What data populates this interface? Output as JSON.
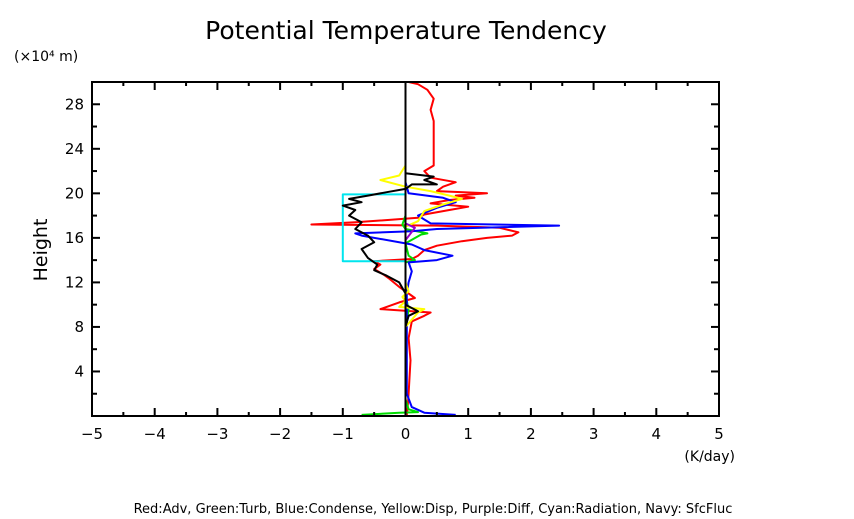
{
  "chart_data": {
    "type": "line",
    "title": "Potential Temperature Tendency",
    "ylabel": "Height",
    "y_unit_label": "(×10⁴ m)",
    "x_unit_label": "(K/day)",
    "legend_text": "Red:Adv, Green:Turb, Blue:Condense, Yellow:Disp, Purple:Diff, Cyan:Radiation, Navy: SfcFluc",
    "xlim": [
      -5,
      5
    ],
    "ylim": [
      0,
      30
    ],
    "x_ticks": [
      -5,
      -4,
      -3,
      -2,
      -1,
      0,
      1,
      2,
      3,
      4,
      5
    ],
    "x_tick_labels": [
      "−5",
      "−4",
      "−3",
      "−2",
      "−1",
      "0",
      "1",
      "2",
      "3",
      "4",
      "5"
    ],
    "y_ticks": [
      4,
      8,
      12,
      16,
      20,
      24,
      28
    ],
    "y_tick_labels": [
      "4",
      "8",
      "12",
      "16",
      "20",
      "24",
      "28"
    ],
    "grid": false,
    "series": [
      {
        "name": "Red:Adv",
        "color": "#ff0000",
        "points": [
          [
            0.02,
            0.1
          ],
          [
            0.03,
            0.5
          ],
          [
            0.05,
            2
          ],
          [
            0.08,
            5
          ],
          [
            0.05,
            7
          ],
          [
            0.1,
            8.5
          ],
          [
            0.3,
            9
          ],
          [
            0.4,
            9.3
          ],
          [
            -0.4,
            9.6
          ],
          [
            -0.1,
            10.2
          ],
          [
            0.15,
            10.6
          ],
          [
            0.05,
            11
          ],
          [
            -0.1,
            11.6
          ],
          [
            -0.25,
            12.3
          ],
          [
            -0.35,
            12.7
          ],
          [
            -0.5,
            13.2
          ],
          [
            -0.4,
            13.6
          ],
          [
            -0.5,
            13.9
          ],
          [
            0.1,
            14.1
          ],
          [
            0.2,
            14.4
          ],
          [
            0.3,
            14.9
          ],
          [
            0.5,
            15.3
          ],
          [
            0.9,
            15.7
          ],
          [
            1.3,
            16
          ],
          [
            1.7,
            16.2
          ],
          [
            1.8,
            16.5
          ],
          [
            1.5,
            16.9
          ],
          [
            0.5,
            17.1
          ],
          [
            -1.5,
            17.2
          ],
          [
            -0.8,
            17.4
          ],
          [
            0.2,
            17.8
          ],
          [
            0.3,
            18.1
          ],
          [
            0.7,
            18.5
          ],
          [
            1.0,
            18.8
          ],
          [
            0.4,
            19.1
          ],
          [
            0.7,
            19.4
          ],
          [
            1.1,
            19.6
          ],
          [
            0.8,
            19.8
          ],
          [
            1.3,
            20
          ],
          [
            0.5,
            20.2
          ],
          [
            0.6,
            20.6
          ],
          [
            0.8,
            21
          ],
          [
            0.4,
            21.4
          ],
          [
            0.3,
            22
          ],
          [
            0.45,
            22.5
          ],
          [
            0.45,
            23.5
          ],
          [
            0.45,
            24.5
          ],
          [
            0.45,
            25.5
          ],
          [
            0.45,
            26.5
          ],
          [
            0.4,
            27.5
          ],
          [
            0.45,
            28.5
          ],
          [
            0.35,
            29.3
          ],
          [
            0.2,
            29.8
          ],
          [
            0.05,
            30
          ]
        ]
      },
      {
        "name": "Green:Turb",
        "color": "#00dd00",
        "points": [
          [
            -0.7,
            0.1
          ],
          [
            -0.1,
            0.3
          ],
          [
            0.2,
            0.35
          ],
          [
            0.05,
            0.6
          ],
          [
            0.0,
            1.5
          ],
          [
            0.0,
            8
          ],
          [
            0.05,
            9.5
          ],
          [
            0.0,
            11
          ],
          [
            0.0,
            13
          ],
          [
            0.0,
            13.8
          ],
          [
            0.15,
            14
          ],
          [
            0.05,
            14.4
          ],
          [
            0.0,
            15.5
          ],
          [
            0.25,
            16.3
          ],
          [
            0.35,
            16.4
          ],
          [
            0.0,
            16.8
          ],
          [
            -0.05,
            17.2
          ],
          [
            0.0,
            18
          ],
          [
            0.0,
            30
          ]
        ]
      },
      {
        "name": "Blue:Condense",
        "color": "#0000ff",
        "points": [
          [
            0.8,
            0.1
          ],
          [
            0.3,
            0.3
          ],
          [
            0.1,
            0.8
          ],
          [
            0.02,
            2
          ],
          [
            0.02,
            9
          ],
          [
            0.02,
            11
          ],
          [
            0.05,
            12
          ],
          [
            0.1,
            13
          ],
          [
            0.05,
            13.8
          ],
          [
            0.5,
            14
          ],
          [
            0.75,
            14.4
          ],
          [
            0.3,
            14.9
          ],
          [
            0.1,
            15.4
          ],
          [
            -0.7,
            16.2
          ],
          [
            -0.8,
            16.4
          ],
          [
            0.1,
            16.6
          ],
          [
            0.5,
            16.8
          ],
          [
            2.45,
            17.1
          ],
          [
            0.4,
            17.3
          ],
          [
            0.2,
            18
          ],
          [
            0.5,
            18.7
          ],
          [
            0.8,
            19.2
          ],
          [
            0.6,
            19.6
          ],
          [
            0.05,
            20
          ],
          [
            0.0,
            21
          ],
          [
            0.0,
            30
          ]
        ]
      },
      {
        "name": "Yellow:Disp",
        "color": "#ffff00",
        "points": [
          [
            0.0,
            0.1
          ],
          [
            0.0,
            8
          ],
          [
            0.2,
            9.3
          ],
          [
            0.3,
            9.6
          ],
          [
            -0.1,
            9.8
          ],
          [
            0.0,
            10.3
          ],
          [
            -0.05,
            10.7
          ],
          [
            0.05,
            11.2
          ],
          [
            0.0,
            12
          ],
          [
            0.0,
            16
          ],
          [
            0.0,
            17
          ],
          [
            0.2,
            17.5
          ],
          [
            0.3,
            18.4
          ],
          [
            0.6,
            19
          ],
          [
            0.9,
            19.5
          ],
          [
            0.7,
            19.8
          ],
          [
            0.4,
            20.2
          ],
          [
            0.0,
            20.6
          ],
          [
            -0.4,
            21.2
          ],
          [
            -0.1,
            21.6
          ],
          [
            0.0,
            22.5
          ],
          [
            0.0,
            30
          ]
        ]
      },
      {
        "name": "Purple:Diff",
        "color": "#9900cc",
        "points": [
          [
            0.0,
            0.1
          ],
          [
            0.0,
            15.8
          ],
          [
            0.15,
            16.9
          ],
          [
            0.0,
            17.3
          ],
          [
            0.0,
            30
          ]
        ]
      },
      {
        "name": "Cyan:Radiation",
        "color": "#00e5ee",
        "points": [
          [
            0.0,
            0.1
          ],
          [
            0.0,
            13.9
          ],
          [
            -1.0,
            13.9
          ],
          [
            -1.0,
            19.9
          ],
          [
            0.0,
            19.9
          ],
          [
            0.0,
            30
          ]
        ]
      },
      {
        "name": "Black",
        "color": "#000000",
        "points": [
          [
            0.0,
            0.1
          ],
          [
            0.0,
            8
          ],
          [
            0.05,
            9
          ],
          [
            0.2,
            9.4
          ],
          [
            0.0,
            10
          ],
          [
            0.0,
            11
          ],
          [
            -0.1,
            12
          ],
          [
            -0.3,
            12.6
          ],
          [
            -0.5,
            13.1
          ],
          [
            -0.45,
            13.6
          ],
          [
            -0.6,
            14.2
          ],
          [
            -0.7,
            15
          ],
          [
            -0.5,
            15.6
          ],
          [
            -0.6,
            16.2
          ],
          [
            -0.8,
            16.8
          ],
          [
            -0.7,
            17.4
          ],
          [
            -0.9,
            18
          ],
          [
            -0.8,
            18.5
          ],
          [
            -1.0,
            18.9
          ],
          [
            -0.7,
            19.2
          ],
          [
            -0.9,
            19.5
          ],
          [
            -0.6,
            19.8
          ],
          [
            -0.3,
            20.1
          ],
          [
            0.0,
            20.4
          ],
          [
            0.1,
            20.8
          ],
          [
            0.5,
            20.8
          ],
          [
            0.3,
            21.2
          ],
          [
            0.45,
            21.5
          ],
          [
            0.0,
            21.8
          ],
          [
            0.0,
            30
          ]
        ]
      }
    ]
  }
}
